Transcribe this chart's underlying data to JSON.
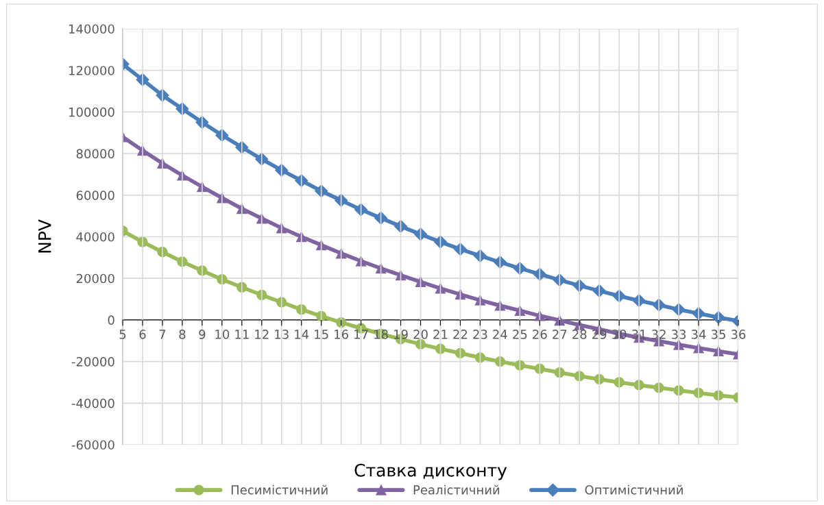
{
  "chart_data": {
    "type": "line",
    "xlabel": "Ставка дисконту",
    "ylabel": "NPV",
    "categories": [
      "5",
      "6",
      "7",
      "8",
      "9",
      "10",
      "11",
      "12",
      "13",
      "14",
      "15",
      "16",
      "17",
      "18",
      "19",
      "20",
      "21",
      "22",
      "23",
      "24",
      "25",
      "26",
      "27",
      "28",
      "29",
      "30",
      "31",
      "32",
      "33",
      "34",
      "35",
      "36"
    ],
    "series": [
      {
        "name": "Песимістичний",
        "color": "#9bbb59",
        "marker": "circle",
        "values": [
          42800,
          37500,
          32700,
          28000,
          23700,
          19500,
          15700,
          12000,
          8500,
          5000,
          1800,
          -1200,
          -4000,
          -6700,
          -9200,
          -11700,
          -13900,
          -16000,
          -18100,
          -20000,
          -21800,
          -23500,
          -25300,
          -27000,
          -28500,
          -30000,
          -31300,
          -32600,
          -33900,
          -35100,
          -36300,
          -37300
        ]
      },
      {
        "name": "Реалістичний",
        "color": "#8064a2",
        "marker": "triangle",
        "values": [
          88000,
          81500,
          75300,
          69500,
          64000,
          58700,
          53500,
          48800,
          44200,
          40000,
          36000,
          32000,
          28300,
          24800,
          21500,
          18300,
          15200,
          12300,
          9500,
          6900,
          4500,
          2000,
          -200,
          -2400,
          -4500,
          -6600,
          -8500,
          -10200,
          -11900,
          -13500,
          -15000,
          -16500
        ]
      },
      {
        "name": "Оптимістичний",
        "color": "#4a7ebb",
        "marker": "diamond",
        "values": [
          123000,
          115500,
          108000,
          101500,
          95000,
          88800,
          83000,
          77300,
          72000,
          67000,
          62000,
          57500,
          53000,
          49000,
          45000,
          41200,
          37500,
          34000,
          30800,
          27800,
          24800,
          22000,
          19200,
          16500,
          14000,
          11500,
          9300,
          7200,
          5000,
          3100,
          1200,
          -500
        ]
      }
    ],
    "ylim": [
      -60000,
      140000
    ],
    "yticks": [
      -60000,
      -40000,
      -20000,
      0,
      20000,
      40000,
      60000,
      80000,
      100000,
      120000,
      140000
    ],
    "grid": true,
    "legend": "bottom",
    "line_style": "solid"
  }
}
